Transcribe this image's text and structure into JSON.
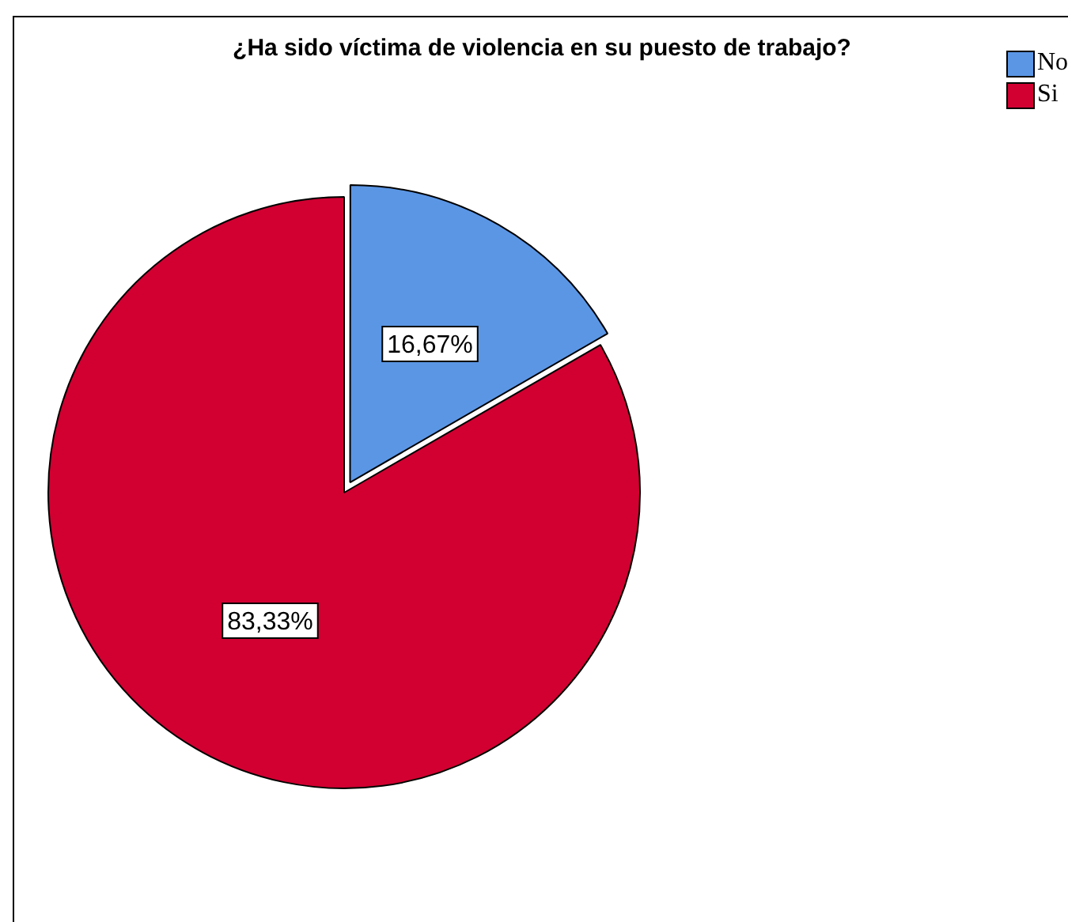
{
  "chart_data": {
    "type": "pie",
    "title": "¿Ha sido víctima de violencia en su puesto de trabajo?",
    "categories": [
      "No",
      "Si"
    ],
    "values": [
      16.67,
      83.33
    ],
    "value_labels": [
      "16,67%",
      "83,33%"
    ],
    "colors": [
      "#5b96e5",
      "#d10031"
    ],
    "legend": "top right"
  }
}
